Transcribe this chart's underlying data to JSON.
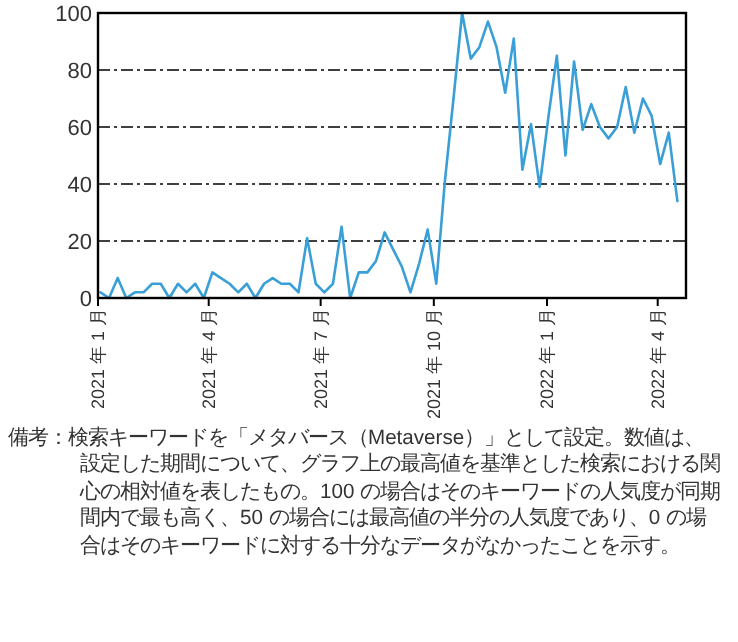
{
  "chart_data": {
    "type": "line",
    "x": [
      "2021-01-03",
      "2021-01-10",
      "2021-01-17",
      "2021-01-24",
      "2021-01-31",
      "2021-02-07",
      "2021-02-14",
      "2021-02-21",
      "2021-02-28",
      "2021-03-07",
      "2021-03-14",
      "2021-03-21",
      "2021-03-28",
      "2021-04-04",
      "2021-04-11",
      "2021-04-18",
      "2021-04-25",
      "2021-05-02",
      "2021-05-09",
      "2021-05-16",
      "2021-05-23",
      "2021-05-30",
      "2021-06-06",
      "2021-06-13",
      "2021-06-20",
      "2021-06-27",
      "2021-07-04",
      "2021-07-11",
      "2021-07-18",
      "2021-07-25",
      "2021-08-01",
      "2021-08-08",
      "2021-08-15",
      "2021-08-22",
      "2021-08-29",
      "2021-09-05",
      "2021-09-12",
      "2021-09-19",
      "2021-09-26",
      "2021-10-03",
      "2021-10-10",
      "2021-10-17",
      "2021-10-24",
      "2021-10-31",
      "2021-11-07",
      "2021-11-14",
      "2021-11-21",
      "2021-11-28",
      "2021-12-05",
      "2021-12-12",
      "2021-12-19",
      "2021-12-26",
      "2022-01-02",
      "2022-01-09",
      "2022-01-16",
      "2022-01-23",
      "2022-01-30",
      "2022-02-06",
      "2022-02-13",
      "2022-02-20",
      "2022-02-27",
      "2022-03-06",
      "2022-03-13",
      "2022-03-20",
      "2022-03-27",
      "2022-04-03",
      "2022-04-10",
      "2022-04-17"
    ],
    "series": [
      {
        "color": "#3a9fd6",
        "values": [
          2,
          0,
          7,
          0,
          2,
          2,
          5,
          5,
          0,
          5,
          2,
          5,
          0,
          9,
          7,
          5,
          2,
          5,
          0,
          5,
          7,
          5,
          5,
          2,
          21,
          5,
          2,
          5,
          25,
          0,
          9,
          9,
          13,
          23,
          17,
          11,
          2,
          12,
          24,
          5,
          41,
          70,
          100,
          84,
          88,
          97,
          88,
          72,
          91,
          45,
          61,
          39,
          63,
          85,
          50,
          83,
          59,
          68,
          60,
          56,
          60,
          74,
          58,
          70,
          64,
          47,
          58,
          34
        ]
      }
    ],
    "xlim": [
      "2021-01-01",
      "2022-04-24"
    ],
    "xticks": [
      {
        "value": "2021-01-01",
        "label": "2021 年 1 月"
      },
      {
        "value": "2021-04-01",
        "label": "2021 年 4 月"
      },
      {
        "value": "2021-07-01",
        "label": "2021 年 7 月"
      },
      {
        "value": "2021-10-01",
        "label": "2021 年 10 月"
      },
      {
        "value": "2022-01-01",
        "label": "2022 年 1 月"
      },
      {
        "value": "2022-04-01",
        "label": "2022 年 4 月"
      }
    ],
    "ylim": [
      0,
      100
    ],
    "yticks": [
      0,
      20,
      40,
      60,
      80,
      100
    ],
    "grid": "y",
    "line_style": "solid",
    "marker": "none",
    "annotations": [
      "備考：検索キーワードを「メタバース（Metaverse）」として設定。数値は、設定した期間について、グラフ上の最高値を基準とした検索における関心の相対値を表したもの。100 の場合はそのキーワードの人気度が同期間内で最も高く、50 の場合には最高値の半分の人気度であり、0 の場合はそのキーワードに対する十分なデータがなかったことを示す。"
    ]
  }
}
